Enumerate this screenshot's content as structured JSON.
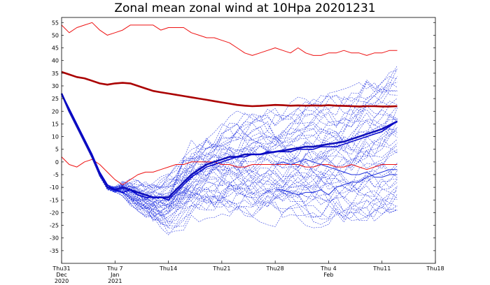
{
  "chart_data": {
    "type": "line",
    "title": "Zonal mean zonal wind at 10Hpa 20201231",
    "xlabel": "",
    "ylabel": "",
    "x_range_days": [
      0,
      49
    ],
    "ylim": [
      -40,
      57
    ],
    "yticks": [
      -35,
      -30,
      -25,
      -20,
      -15,
      -10,
      -5,
      0,
      5,
      10,
      15,
      20,
      25,
      30,
      35,
      40,
      45,
      50,
      55
    ],
    "xticks": [
      {
        "day": 0,
        "label": "Thu31",
        "sub1": "Dec",
        "sub2": "2020"
      },
      {
        "day": 7,
        "label": "Thu 7",
        "sub1": "Jan",
        "sub2": "2021"
      },
      {
        "day": 14,
        "label": "Thu14",
        "sub1": "",
        "sub2": ""
      },
      {
        "day": 21,
        "label": "Thu21",
        "sub1": "",
        "sub2": ""
      },
      {
        "day": 28,
        "label": "Thu28",
        "sub1": "",
        "sub2": ""
      },
      {
        "day": 35,
        "label": "Thu 4",
        "sub1": "Feb",
        "sub2": ""
      },
      {
        "day": 42,
        "label": "Thu11",
        "sub1": "",
        "sub2": ""
      },
      {
        "day": 49,
        "label": "Thu18",
        "sub1": "",
        "sub2": ""
      }
    ],
    "grid": false,
    "series": [
      {
        "role": "climatology-max",
        "color": "#ee1111",
        "width": 1.0,
        "x": [
          0,
          1,
          2,
          3,
          4,
          5,
          6,
          7,
          8,
          9,
          10,
          11,
          12,
          13,
          14,
          15,
          16,
          17,
          18,
          19,
          20,
          21,
          22,
          23,
          24,
          25,
          26,
          27,
          28,
          29,
          30,
          31,
          32,
          33,
          34,
          35,
          36,
          37,
          38,
          39,
          40,
          41,
          42,
          43,
          44
        ],
        "y": [
          54,
          51,
          53,
          54,
          55,
          52,
          50,
          51,
          52,
          54,
          54,
          54,
          54,
          52,
          53,
          53,
          53,
          51,
          50,
          49,
          49,
          48,
          47,
          45,
          43,
          42,
          43,
          44,
          45,
          44,
          43,
          45,
          43,
          42,
          42,
          43,
          43,
          44,
          43,
          43,
          42,
          43,
          43,
          44,
          44
        ]
      },
      {
        "role": "climatology-mean",
        "color": "#aa0000",
        "width": 2.6,
        "x": [
          0,
          1,
          2,
          3,
          4,
          5,
          6,
          7,
          8,
          9,
          10,
          11,
          12,
          13,
          14,
          15,
          16,
          17,
          18,
          19,
          20,
          21,
          22,
          23,
          24,
          25,
          26,
          27,
          28,
          29,
          30,
          31,
          32,
          33,
          34,
          35,
          36,
          37,
          38,
          39,
          40,
          41,
          42,
          43,
          44
        ],
        "y": [
          35.5,
          34.5,
          33.5,
          33,
          32,
          31,
          30.5,
          31,
          31.2,
          31,
          30,
          29,
          28,
          27.5,
          27,
          26.5,
          26,
          25.5,
          25,
          24.5,
          24,
          23.5,
          23,
          22.5,
          22.2,
          22,
          22.1,
          22.3,
          22.5,
          22.4,
          22.2,
          22.3,
          22.2,
          22.3,
          22.2,
          22.4,
          22.2,
          22.1,
          22,
          21.9,
          22,
          22,
          21.9,
          21.9,
          22
        ]
      },
      {
        "role": "climatology-min",
        "color": "#ee1111",
        "width": 1.0,
        "x": [
          0,
          1,
          2,
          3,
          4,
          5,
          6,
          7,
          8,
          9,
          10,
          11,
          12,
          13,
          14,
          15,
          16,
          17,
          18,
          19,
          20,
          21,
          22,
          23,
          24,
          25,
          26,
          27,
          28,
          29,
          30,
          31,
          32,
          33,
          34,
          35,
          36,
          37,
          38,
          39,
          40,
          41,
          42,
          43,
          44
        ],
        "y": [
          2,
          -1,
          -2,
          0,
          1,
          -1,
          -4,
          -7,
          -9,
          -7,
          -5,
          -4,
          -4,
          -3,
          -2,
          -1,
          -1,
          0,
          0,
          0,
          0,
          -1,
          -1,
          -2,
          -2,
          -1,
          -1,
          -1,
          -1,
          -1,
          -1,
          -1,
          -2,
          -2,
          -1,
          -1,
          -2,
          -2,
          -1,
          -2,
          -3,
          -2,
          -1,
          -1,
          -1
        ]
      },
      {
        "role": "ensemble-mean",
        "color": "#1111bb",
        "width": 2.6,
        "x": [
          0,
          1,
          2,
          3,
          4,
          5,
          6,
          7,
          8,
          9,
          10,
          11,
          12,
          13,
          14,
          15,
          16,
          17,
          18,
          19,
          20,
          21,
          22,
          23,
          24,
          25,
          26,
          27,
          28,
          29,
          30,
          31,
          32,
          33,
          34,
          35,
          36,
          37,
          38,
          39,
          40,
          41,
          42,
          43,
          44
        ],
        "y": [
          27,
          20,
          14,
          8,
          2,
          -5,
          -10,
          -11,
          -10,
          -11,
          -12,
          -13,
          -14,
          -14,
          -14,
          -11,
          -8,
          -5,
          -3,
          -1,
          0,
          1,
          2,
          2,
          3,
          3,
          3,
          3.5,
          4,
          4.5,
          5,
          5.5,
          6,
          6,
          6.5,
          7,
          7.5,
          8,
          9,
          10,
          11,
          12,
          13,
          14.5,
          16
        ]
      },
      {
        "role": "analysis",
        "color": "#0000cc",
        "width": 1.5,
        "x": [
          0,
          1,
          2,
          3,
          4,
          5,
          6,
          7,
          8,
          9,
          10,
          11,
          12,
          13,
          14,
          15,
          16,
          17,
          18,
          19,
          20,
          21,
          22,
          23,
          24,
          25,
          26,
          27,
          28,
          29,
          30,
          31,
          32,
          33,
          34,
          35,
          36,
          37,
          38,
          39,
          40,
          41,
          42,
          43,
          44
        ],
        "y": [
          27,
          21,
          15,
          9,
          3,
          -4,
          -9,
          -11,
          -12,
          -11,
          -13,
          -14,
          -14,
          -14,
          -15,
          -12,
          -9,
          -6,
          -4,
          -2,
          -1,
          0,
          1,
          2,
          2,
          3,
          3,
          4,
          4,
          4,
          4,
          5,
          5,
          5,
          6,
          6,
          6,
          7,
          8,
          9,
          10,
          11,
          12,
          14,
          16
        ]
      },
      {
        "role": "member-low",
        "color": "#2233dd",
        "width": 1.0,
        "x": [
          28,
          29,
          30,
          31,
          32,
          33,
          34,
          35,
          36,
          37,
          38,
          39,
          40,
          41,
          42,
          43,
          44
        ],
        "y": [
          -11,
          -11,
          -12,
          -13,
          -12,
          -12,
          -11,
          -13,
          -10,
          -9,
          -8,
          -8,
          -6,
          -5,
          -4,
          -3,
          -3
        ]
      },
      {
        "role": "member-low2",
        "color": "#2233dd",
        "width": 1.0,
        "x": [
          28,
          29,
          30,
          31,
          32,
          33,
          34,
          35,
          36,
          37,
          38,
          39,
          40,
          41,
          42,
          43,
          44
        ],
        "y": [
          -1,
          0,
          -1,
          0,
          1,
          0,
          -1,
          -2,
          -3,
          -4,
          -5,
          -5,
          -4,
          -6,
          -6,
          -5,
          -5
        ]
      }
    ],
    "ensemble": {
      "count": 50,
      "color": "#1d2de0",
      "dash": "2,1.4",
      "width": 0.55,
      "spread_end_min": -20,
      "spread_end_max": 37,
      "start_days": 7
    }
  }
}
